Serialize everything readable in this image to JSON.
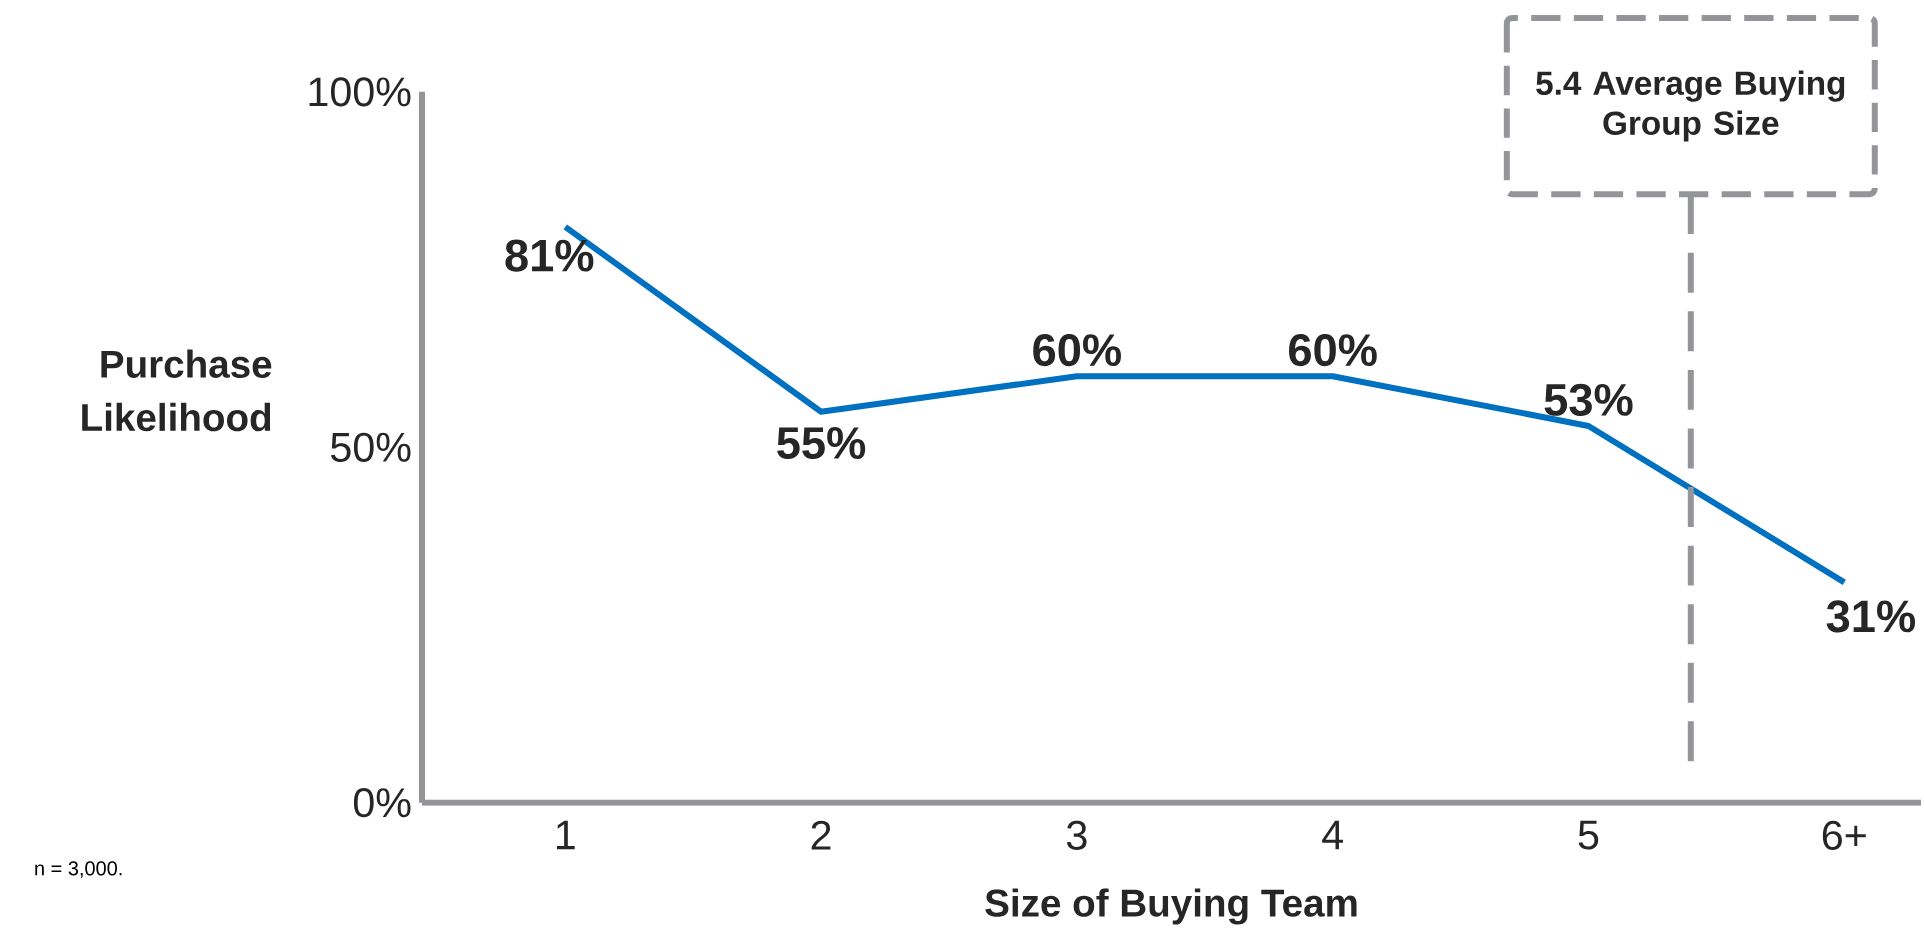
{
  "chart_data": {
    "type": "line",
    "x": [
      1,
      2,
      3,
      4,
      5,
      6
    ],
    "values": [
      81,
      55,
      60,
      60,
      53,
      31
    ],
    "value_labels": [
      "81%",
      "55%",
      "60%",
      "60%",
      "53%",
      "31%"
    ],
    "color": "#0070c0",
    "xlabel": "Size of Buying Team",
    "ylabel": "Purchase Likelihood",
    "xlim": [
      0.44,
      6.3
    ],
    "ylim": [
      0,
      100
    ],
    "xticks": [
      1,
      2,
      3,
      4,
      5,
      {
        "value": 6,
        "label": "6+"
      }
    ],
    "yticks": [
      {
        "value": 0,
        "label": "0%"
      },
      {
        "value": 50,
        "label": "50%"
      },
      {
        "value": 100,
        "label": "100%"
      }
    ],
    "ref_lines": [
      {
        "axis": "x",
        "value": 5.4,
        "label": "5.4 Average Buying Group Size",
        "color": "#939598",
        "line_style": "dashed"
      }
    ],
    "annotations": [
      "n = 3,000."
    ],
    "grid": false,
    "marker": "none",
    "line_style": "solid"
  }
}
